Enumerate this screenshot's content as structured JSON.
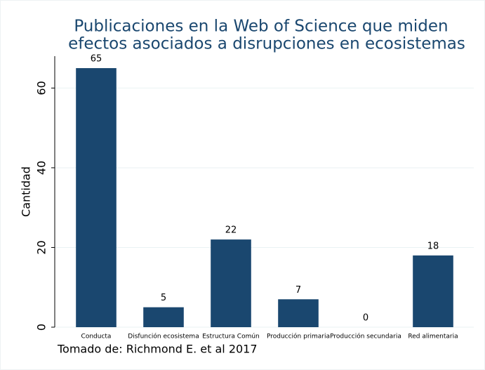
{
  "chart_data": {
    "type": "bar",
    "title": [
      "Publicaciones en la Web of Science  que miden",
      "efectos asociados a disrupciones en ecosistemas"
    ],
    "y_label": "Cantidad",
    "note": "Tomado de: Richmond E. et al 2017",
    "categories": [
      "Conducta",
      "Disfunción ecosistema",
      "Estructura Común",
      "Producción primaria",
      "Producción secundaria",
      "Red alimentaria"
    ],
    "values": [
      65,
      5,
      22,
      7,
      0,
      18
    ],
    "color": "#1a476f",
    "ylim": [
      0,
      68
    ],
    "yticks": [
      0,
      20,
      40,
      60
    ],
    "grid": true
  }
}
